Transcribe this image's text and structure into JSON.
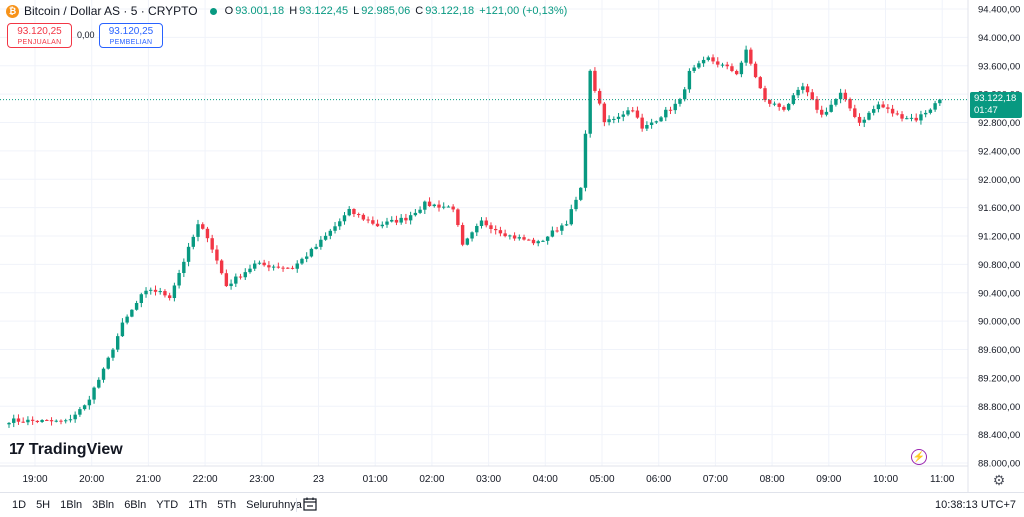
{
  "header": {
    "btc_icon_glyph": "₿",
    "symbol": "Bitcoin / Dollar AS · 5 · CRYPTO",
    "ohlc": {
      "o_label": "O",
      "o": "93.001,18",
      "h_label": "H",
      "h": "93.122,45",
      "l_label": "L",
      "l": "92.985,06",
      "c_label": "C",
      "c": "93.122,18",
      "change": "+121,00 (+0,13%)"
    }
  },
  "trade": {
    "sell_price": "93.120,25",
    "sell_label": "PENJUALAN",
    "spread": "0,00",
    "buy_price": "93.120,25",
    "buy_label": "PEMBELIAN"
  },
  "price_tag": {
    "price": "93.122,18",
    "countdown": "01:47"
  },
  "logo": {
    "mark": "17",
    "text": "TradingView"
  },
  "bottom_bar": {
    "ranges": [
      "1D",
      "5H",
      "1Bln",
      "3Bln",
      "6Bln",
      "YTD",
      "1Th",
      "5Th",
      "Seluruhnya"
    ],
    "clock": "10:38:13 UTC+7"
  },
  "colors": {
    "up": "#089981",
    "down": "#f23645",
    "grid": "#f0f3fa",
    "axis_text": "#131722"
  },
  "icons": {
    "calendar": "calendar-range-icon",
    "bolt": "lightning-icon",
    "settings": "gear-icon"
  },
  "chart_data": {
    "type": "candlestick",
    "y_ticks": [
      "94.400,00",
      "94.000,00",
      "93.600,00",
      "93.200,00",
      "92.800,00",
      "92.400,00",
      "92.000,00",
      "91.600,00",
      "91.200,00",
      "90.800,00",
      "90.400,00",
      "90.000,00",
      "89.600,00",
      "89.200,00",
      "88.800,00",
      "88.400,00",
      "88.000,00"
    ],
    "y_tick_values": [
      94400,
      94000,
      93600,
      93200,
      92800,
      92400,
      92000,
      91600,
      91200,
      90800,
      90400,
      90000,
      89600,
      89200,
      88800,
      88400,
      88000
    ],
    "ylim": [
      87950,
      94500
    ],
    "x_ticks": [
      "19:00",
      "20:00",
      "21:00",
      "22:00",
      "23:00",
      "23",
      "01:00",
      "02:00",
      "03:00",
      "04:00",
      "05:00",
      "06:00",
      "07:00",
      "08:00",
      "09:00",
      "10:00",
      "11:00"
    ],
    "x_tick_hours": [
      0,
      1,
      2,
      3,
      4,
      5,
      6,
      7,
      8,
      9,
      10,
      11,
      12,
      13,
      14,
      15,
      16
    ],
    "x_start_hour": -0.5,
    "candle_minutes": 5,
    "last_price": 93122.18,
    "keypoints": [
      [
        0,
        88600
      ],
      [
        12,
        88580
      ],
      [
        16,
        88800
      ],
      [
        20,
        89300
      ],
      [
        24,
        89950
      ],
      [
        28,
        90350
      ],
      [
        30,
        90450
      ],
      [
        34,
        90350
      ],
      [
        40,
        91350
      ],
      [
        42,
        91200
      ],
      [
        46,
        90500
      ],
      [
        52,
        90800
      ],
      [
        60,
        90750
      ],
      [
        65,
        91050
      ],
      [
        72,
        91550
      ],
      [
        78,
        91350
      ],
      [
        84,
        91450
      ],
      [
        88,
        91650
      ],
      [
        94,
        91600
      ],
      [
        96,
        91050
      ],
      [
        100,
        91400
      ],
      [
        106,
        91200
      ],
      [
        112,
        91100
      ],
      [
        118,
        91400
      ],
      [
        121,
        91850
      ],
      [
        123,
        93500
      ],
      [
        126,
        92800
      ],
      [
        132,
        93000
      ],
      [
        134,
        92700
      ],
      [
        142,
        93100
      ],
      [
        144,
        93500
      ],
      [
        148,
        93700
      ],
      [
        154,
        93500
      ],
      [
        156,
        93800
      ],
      [
        160,
        93100
      ],
      [
        164,
        93000
      ],
      [
        168,
        93300
      ],
      [
        172,
        92900
      ],
      [
        176,
        93200
      ],
      [
        180,
        92800
      ],
      [
        184,
        93050
      ],
      [
        188,
        92900
      ],
      [
        192,
        92850
      ],
      [
        195,
        93000
      ],
      [
        197,
        93122
      ]
    ]
  }
}
